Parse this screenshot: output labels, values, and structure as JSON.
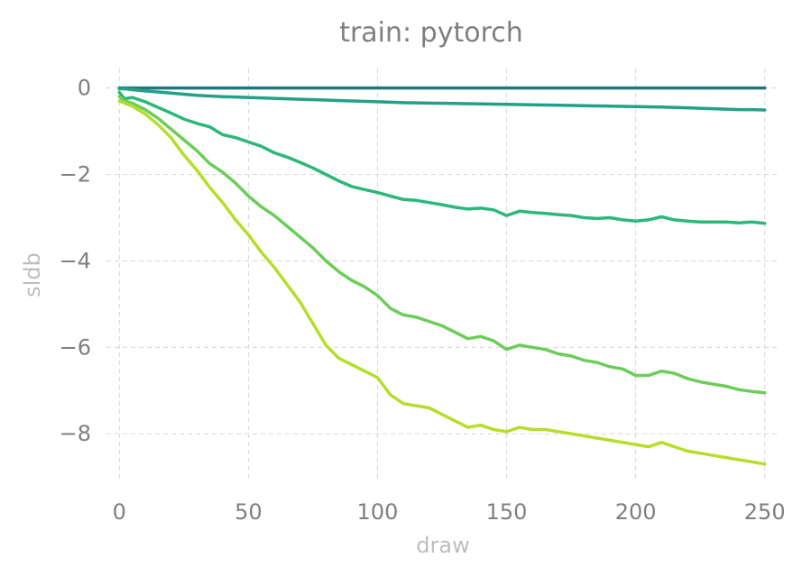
{
  "chart_data": {
    "type": "line",
    "title": "train: pytorch",
    "xlabel": "draw",
    "ylabel": "sldb",
    "xlim": [
      -5,
      255
    ],
    "ylim": [
      -9.1,
      0.45
    ],
    "xticks": [
      0,
      50,
      100,
      150,
      200,
      250
    ],
    "yticks": [
      0,
      -2,
      -4,
      -6,
      -8
    ],
    "xtick_labels": [
      "0",
      "50",
      "100",
      "150",
      "200",
      "250"
    ],
    "ytick_labels": [
      "0",
      "−2",
      "−4",
      "−6",
      "−8"
    ],
    "grid": true,
    "series": [
      {
        "color": "#21777f",
        "x": [
          0,
          10,
          50,
          100,
          150,
          200,
          250
        ],
        "y": [
          0.0,
          0.0,
          0.0,
          0.0,
          0.0,
          0.0,
          0.0
        ]
      },
      {
        "color": "#22a187",
        "x": [
          0,
          2,
          5,
          10,
          20,
          30,
          40,
          50,
          60,
          70,
          80,
          90,
          100,
          110,
          120,
          130,
          140,
          150,
          160,
          170,
          180,
          190,
          200,
          210,
          220,
          230,
          240,
          245,
          250
        ],
        "y": [
          -0.02,
          -0.02,
          -0.04,
          -0.07,
          -0.12,
          -0.17,
          -0.2,
          -0.22,
          -0.24,
          -0.26,
          -0.28,
          -0.3,
          -0.32,
          -0.34,
          -0.35,
          -0.36,
          -0.37,
          -0.38,
          -0.39,
          -0.4,
          -0.41,
          -0.42,
          -0.43,
          -0.44,
          -0.46,
          -0.48,
          -0.5,
          -0.5,
          -0.51
        ]
      },
      {
        "color": "#2db77a",
        "x": [
          0,
          2,
          5,
          10,
          15,
          20,
          25,
          30,
          35,
          40,
          45,
          50,
          55,
          60,
          65,
          70,
          75,
          80,
          85,
          90,
          95,
          100,
          105,
          110,
          115,
          120,
          125,
          130,
          135,
          140,
          145,
          150,
          155,
          160,
          165,
          170,
          175,
          180,
          185,
          190,
          195,
          200,
          205,
          210,
          215,
          220,
          225,
          230,
          235,
          240,
          245,
          250
        ],
        "y": [
          -0.1,
          -0.25,
          -0.22,
          -0.32,
          -0.45,
          -0.58,
          -0.72,
          -0.82,
          -0.9,
          -1.08,
          -1.15,
          -1.25,
          -1.35,
          -1.5,
          -1.6,
          -1.72,
          -1.85,
          -2.0,
          -2.15,
          -2.28,
          -2.35,
          -2.42,
          -2.5,
          -2.58,
          -2.6,
          -2.65,
          -2.7,
          -2.76,
          -2.8,
          -2.78,
          -2.82,
          -2.95,
          -2.85,
          -2.88,
          -2.9,
          -2.93,
          -2.95,
          -3.0,
          -3.02,
          -3.0,
          -3.05,
          -3.08,
          -3.05,
          -2.98,
          -3.05,
          -3.08,
          -3.1,
          -3.1,
          -3.1,
          -3.12,
          -3.1,
          -3.13
        ]
      },
      {
        "color": "#6ccd5a",
        "x": [
          0,
          2,
          5,
          10,
          15,
          20,
          25,
          30,
          35,
          40,
          45,
          50,
          55,
          60,
          65,
          70,
          75,
          80,
          85,
          90,
          95,
          100,
          105,
          110,
          115,
          120,
          125,
          130,
          135,
          140,
          145,
          150,
          155,
          160,
          165,
          170,
          175,
          180,
          185,
          190,
          195,
          200,
          205,
          210,
          215,
          220,
          225,
          230,
          235,
          240,
          245,
          250
        ],
        "y": [
          -0.2,
          -0.3,
          -0.35,
          -0.5,
          -0.7,
          -0.95,
          -1.2,
          -1.45,
          -1.75,
          -1.95,
          -2.2,
          -2.5,
          -2.75,
          -2.95,
          -3.2,
          -3.45,
          -3.7,
          -4.0,
          -4.25,
          -4.45,
          -4.6,
          -4.8,
          -5.1,
          -5.25,
          -5.3,
          -5.4,
          -5.5,
          -5.65,
          -5.8,
          -5.75,
          -5.85,
          -6.05,
          -5.95,
          -6.0,
          -6.05,
          -6.15,
          -6.2,
          -6.3,
          -6.35,
          -6.45,
          -6.5,
          -6.65,
          -6.65,
          -6.55,
          -6.6,
          -6.72,
          -6.8,
          -6.85,
          -6.9,
          -6.98,
          -7.02,
          -7.05
        ]
      },
      {
        "color": "#b5de2b",
        "x": [
          0,
          2,
          5,
          10,
          15,
          20,
          25,
          30,
          35,
          40,
          45,
          50,
          55,
          60,
          65,
          70,
          75,
          80,
          85,
          90,
          95,
          100,
          105,
          110,
          115,
          120,
          125,
          130,
          135,
          140,
          145,
          150,
          155,
          160,
          165,
          170,
          175,
          180,
          185,
          190,
          195,
          200,
          205,
          210,
          215,
          220,
          225,
          230,
          235,
          240,
          245,
          250
        ],
        "y": [
          -0.3,
          -0.35,
          -0.42,
          -0.6,
          -0.85,
          -1.15,
          -1.55,
          -1.9,
          -2.3,
          -2.65,
          -3.05,
          -3.4,
          -3.8,
          -4.15,
          -4.55,
          -4.95,
          -5.45,
          -5.95,
          -6.25,
          -6.4,
          -6.55,
          -6.7,
          -7.1,
          -7.3,
          -7.35,
          -7.4,
          -7.55,
          -7.7,
          -7.85,
          -7.8,
          -7.9,
          -7.95,
          -7.85,
          -7.9,
          -7.9,
          -7.95,
          -8.0,
          -8.05,
          -8.1,
          -8.15,
          -8.2,
          -8.25,
          -8.3,
          -8.2,
          -8.3,
          -8.4,
          -8.45,
          -8.5,
          -8.55,
          -8.6,
          -8.65,
          -8.7
        ]
      }
    ]
  }
}
